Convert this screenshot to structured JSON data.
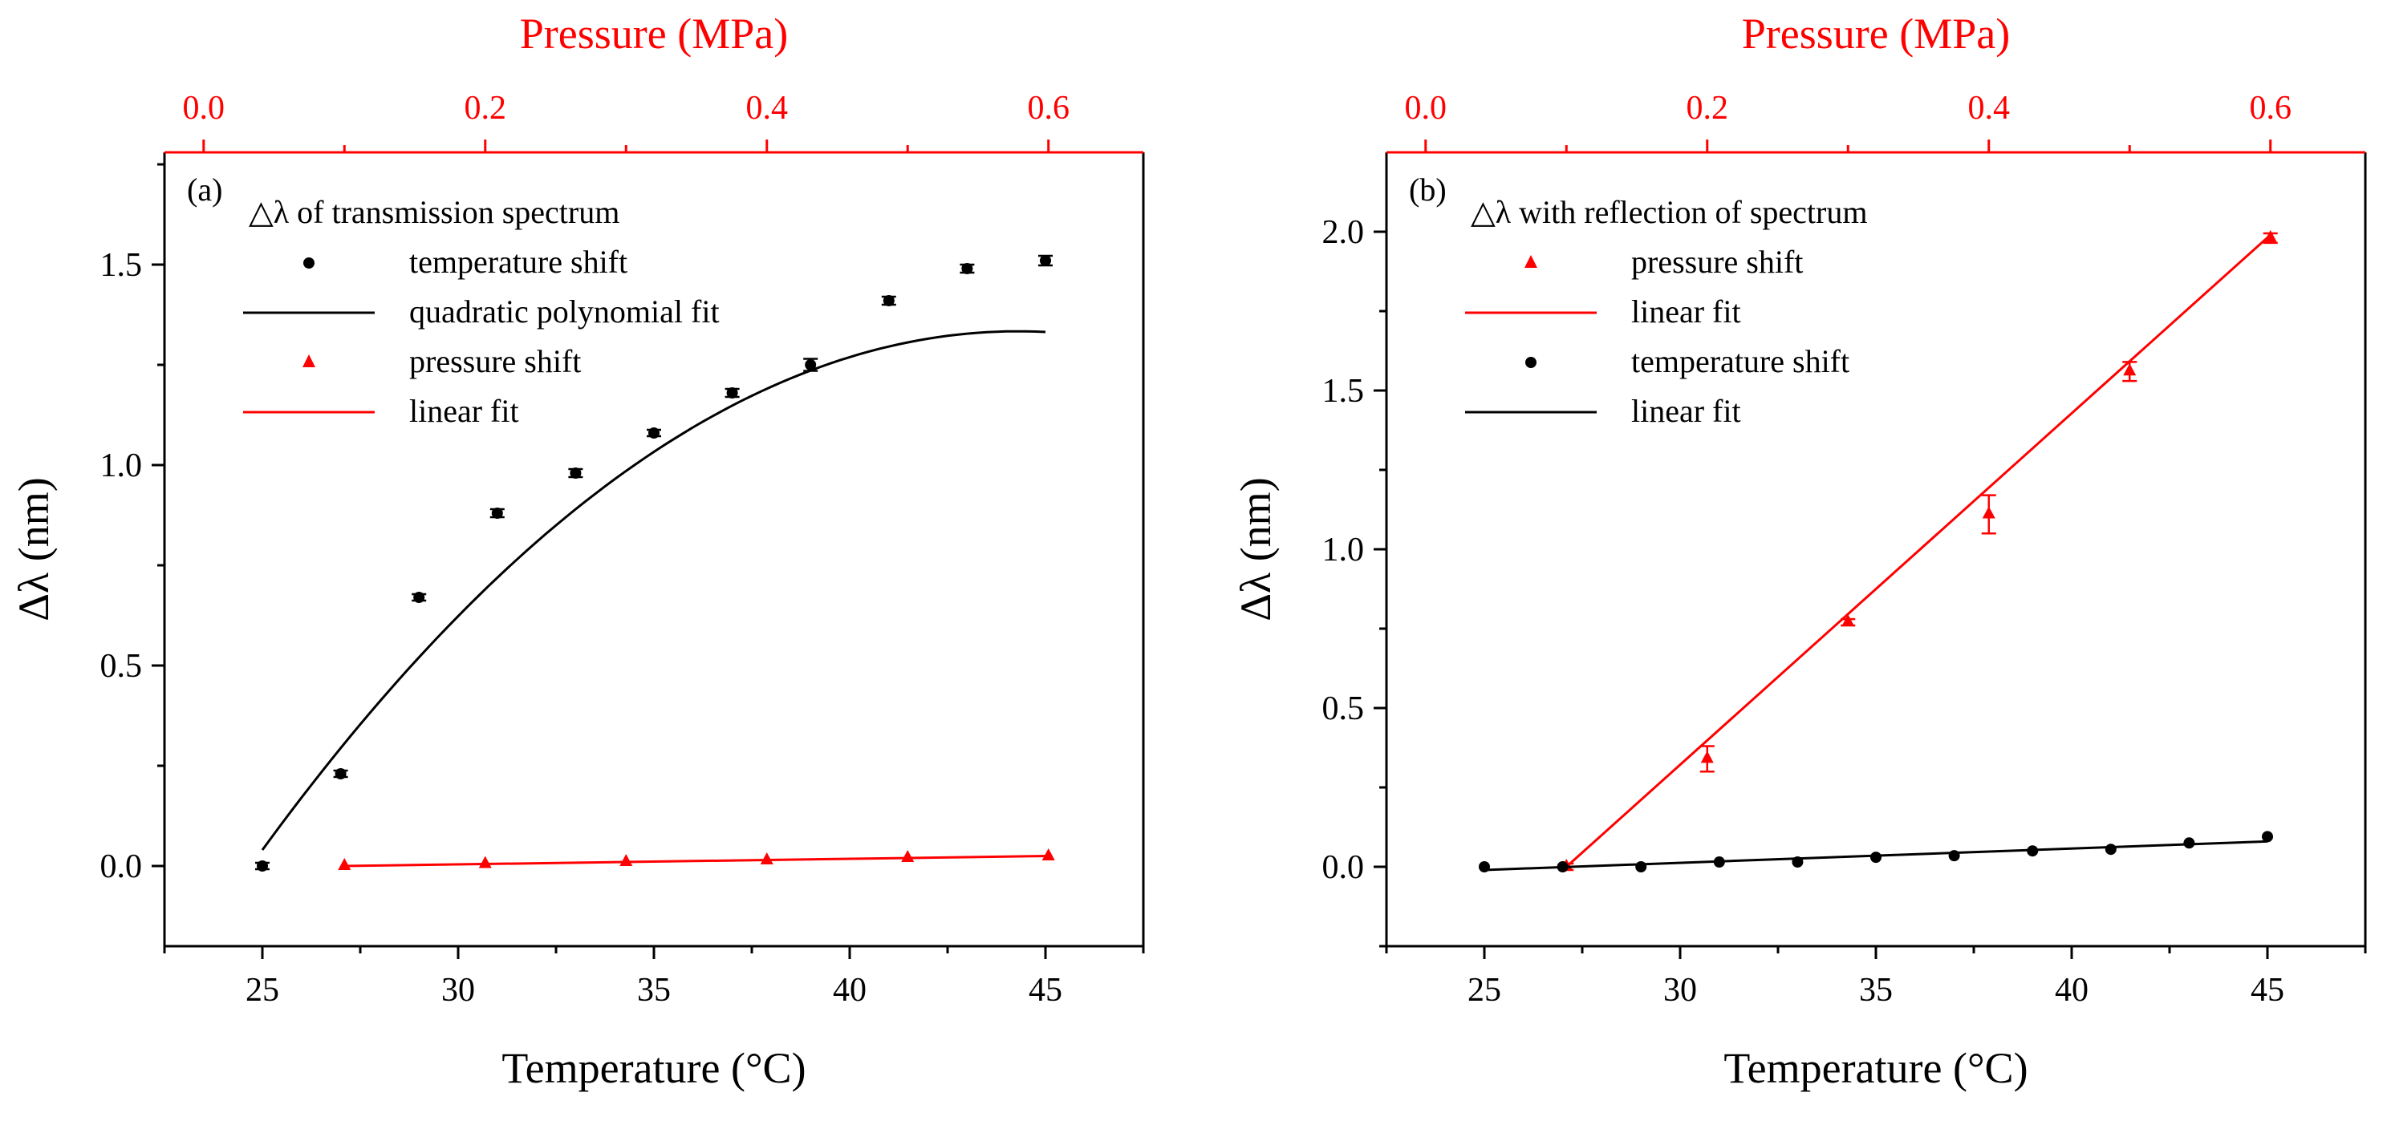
{
  "colors": {
    "black": "#000000",
    "red": "#ff0000"
  },
  "chart_data": [
    {
      "type": "scatter",
      "panel_label": "(a)",
      "legend_title": "△λ of transmission spectrum",
      "xlabel": "Temperature (°C)",
      "x2label": "Pressure (MPa)",
      "ylabel": "Δλ (nm)",
      "xlim": [
        22.5,
        47.5
      ],
      "x2lim": [
        -0.0278,
        0.6674
      ],
      "ylim": [
        -0.2,
        1.78
      ],
      "xticks": [
        25,
        30,
        35,
        40,
        45
      ],
      "xtick_labels": [
        "25",
        "30",
        "35",
        "40",
        "45"
      ],
      "x2ticks": [
        0.0,
        0.2,
        0.4,
        0.6
      ],
      "x2tick_labels": [
        "0.0",
        "0.2",
        "0.4",
        "0.6"
      ],
      "yticks": [
        0.0,
        0.5,
        1.0,
        1.5
      ],
      "ytick_labels": [
        "0.0",
        "0.5",
        "1.0",
        "1.5"
      ],
      "legend": [
        {
          "label": "temperature shift",
          "kind": "marker",
          "marker": "circle",
          "color": "#000000"
        },
        {
          "label": "quadratic polynomial fit",
          "kind": "line",
          "color": "#000000"
        },
        {
          "label": "pressure shift",
          "kind": "marker",
          "marker": "triangle",
          "color": "#ff0000"
        },
        {
          "label": "linear fit",
          "kind": "line",
          "color": "#ff0000"
        }
      ],
      "series": [
        {
          "name": "temperature shift",
          "axis": "bottom",
          "marker": "circle",
          "color": "#000000",
          "x": [
            25,
            27,
            29,
            31,
            33,
            35,
            37,
            39,
            41,
            43,
            45
          ],
          "y": [
            0.0,
            0.23,
            0.67,
            0.88,
            0.98,
            1.08,
            1.18,
            1.25,
            1.41,
            1.49,
            1.51
          ],
          "err": [
            0.008,
            0.008,
            0.008,
            0.01,
            0.01,
            0.008,
            0.01,
            0.015,
            0.01,
            0.01,
            0.012
          ]
        },
        {
          "name": "quadratic polynomial fit",
          "axis": "bottom",
          "type": "curve",
          "color": "#000000",
          "poly": [
            0.04,
            0.134,
            -0.00347
          ],
          "poly_origin": 25,
          "range": [
            25,
            45
          ]
        },
        {
          "name": "pressure shift",
          "axis": "top",
          "marker": "triangle",
          "color": "#ff0000",
          "x": [
            0.1,
            0.2,
            0.3,
            0.4,
            0.5,
            0.6
          ],
          "y": [
            0.0,
            0.005,
            0.01,
            0.014,
            0.02,
            0.024
          ],
          "err": [
            0,
            0,
            0,
            0,
            0,
            0
          ]
        },
        {
          "name": "linear fit",
          "axis": "top",
          "type": "line",
          "color": "#ff0000",
          "x": [
            0.1,
            0.6
          ],
          "y": [
            0.0,
            0.025
          ]
        }
      ]
    },
    {
      "type": "scatter",
      "panel_label": "(b)",
      "legend_title": "△λ with reflection of spectrum",
      "xlabel": "Temperature (°C)",
      "x2label": "Pressure (MPa)",
      "ylabel": "Δλ (nm)",
      "xlim": [
        22.5,
        47.5
      ],
      "x2lim": [
        -0.0278,
        0.6674
      ],
      "ylim": [
        -0.25,
        2.25
      ],
      "xticks": [
        25,
        30,
        35,
        40,
        45
      ],
      "xtick_labels": [
        "25",
        "30",
        "35",
        "40",
        "45"
      ],
      "x2ticks": [
        0.0,
        0.2,
        0.4,
        0.6
      ],
      "x2tick_labels": [
        "0.0",
        "0.2",
        "0.4",
        "0.6"
      ],
      "yticks": [
        0.0,
        0.5,
        1.0,
        1.5,
        2.0
      ],
      "ytick_labels": [
        "0.0",
        "0.5",
        "1.0",
        "1.5",
        "2.0"
      ],
      "legend": [
        {
          "label": "pressure shift",
          "kind": "marker",
          "marker": "triangle",
          "color": "#ff0000"
        },
        {
          "label": "linear fit",
          "kind": "line",
          "color": "#ff0000"
        },
        {
          "label": "temperature shift",
          "kind": "marker",
          "marker": "circle",
          "color": "#000000"
        },
        {
          "label": "linear fit",
          "kind": "line",
          "color": "#000000"
        }
      ],
      "series": [
        {
          "name": "pressure shift",
          "axis": "top",
          "marker": "triangle",
          "color": "#ff0000",
          "x": [
            0.1,
            0.2,
            0.3,
            0.4,
            0.5,
            0.6
          ],
          "y": [
            0.0,
            0.34,
            0.77,
            1.11,
            1.56,
            1.98
          ],
          "err": [
            0.01,
            0.04,
            0.01,
            0.06,
            0.03,
            0.015
          ]
        },
        {
          "name": "linear fit",
          "axis": "top",
          "type": "line",
          "color": "#ff0000",
          "x": [
            0.1,
            0.6
          ],
          "y": [
            0.0,
            1.99
          ]
        },
        {
          "name": "temperature shift",
          "axis": "bottom",
          "marker": "circle",
          "color": "#000000",
          "x": [
            25,
            27,
            29,
            31,
            33,
            35,
            37,
            39,
            41,
            43,
            45
          ],
          "y": [
            0.0,
            0.0,
            0.0,
            0.015,
            0.015,
            0.03,
            0.035,
            0.05,
            0.055,
            0.075,
            0.095
          ],
          "err": [
            0,
            0,
            0,
            0,
            0,
            0,
            0,
            0,
            0,
            0,
            0
          ]
        },
        {
          "name": "linear fit",
          "axis": "bottom",
          "type": "line",
          "color": "#000000",
          "x": [
            25,
            45
          ],
          "y": [
            -0.01,
            0.08
          ]
        }
      ]
    }
  ]
}
